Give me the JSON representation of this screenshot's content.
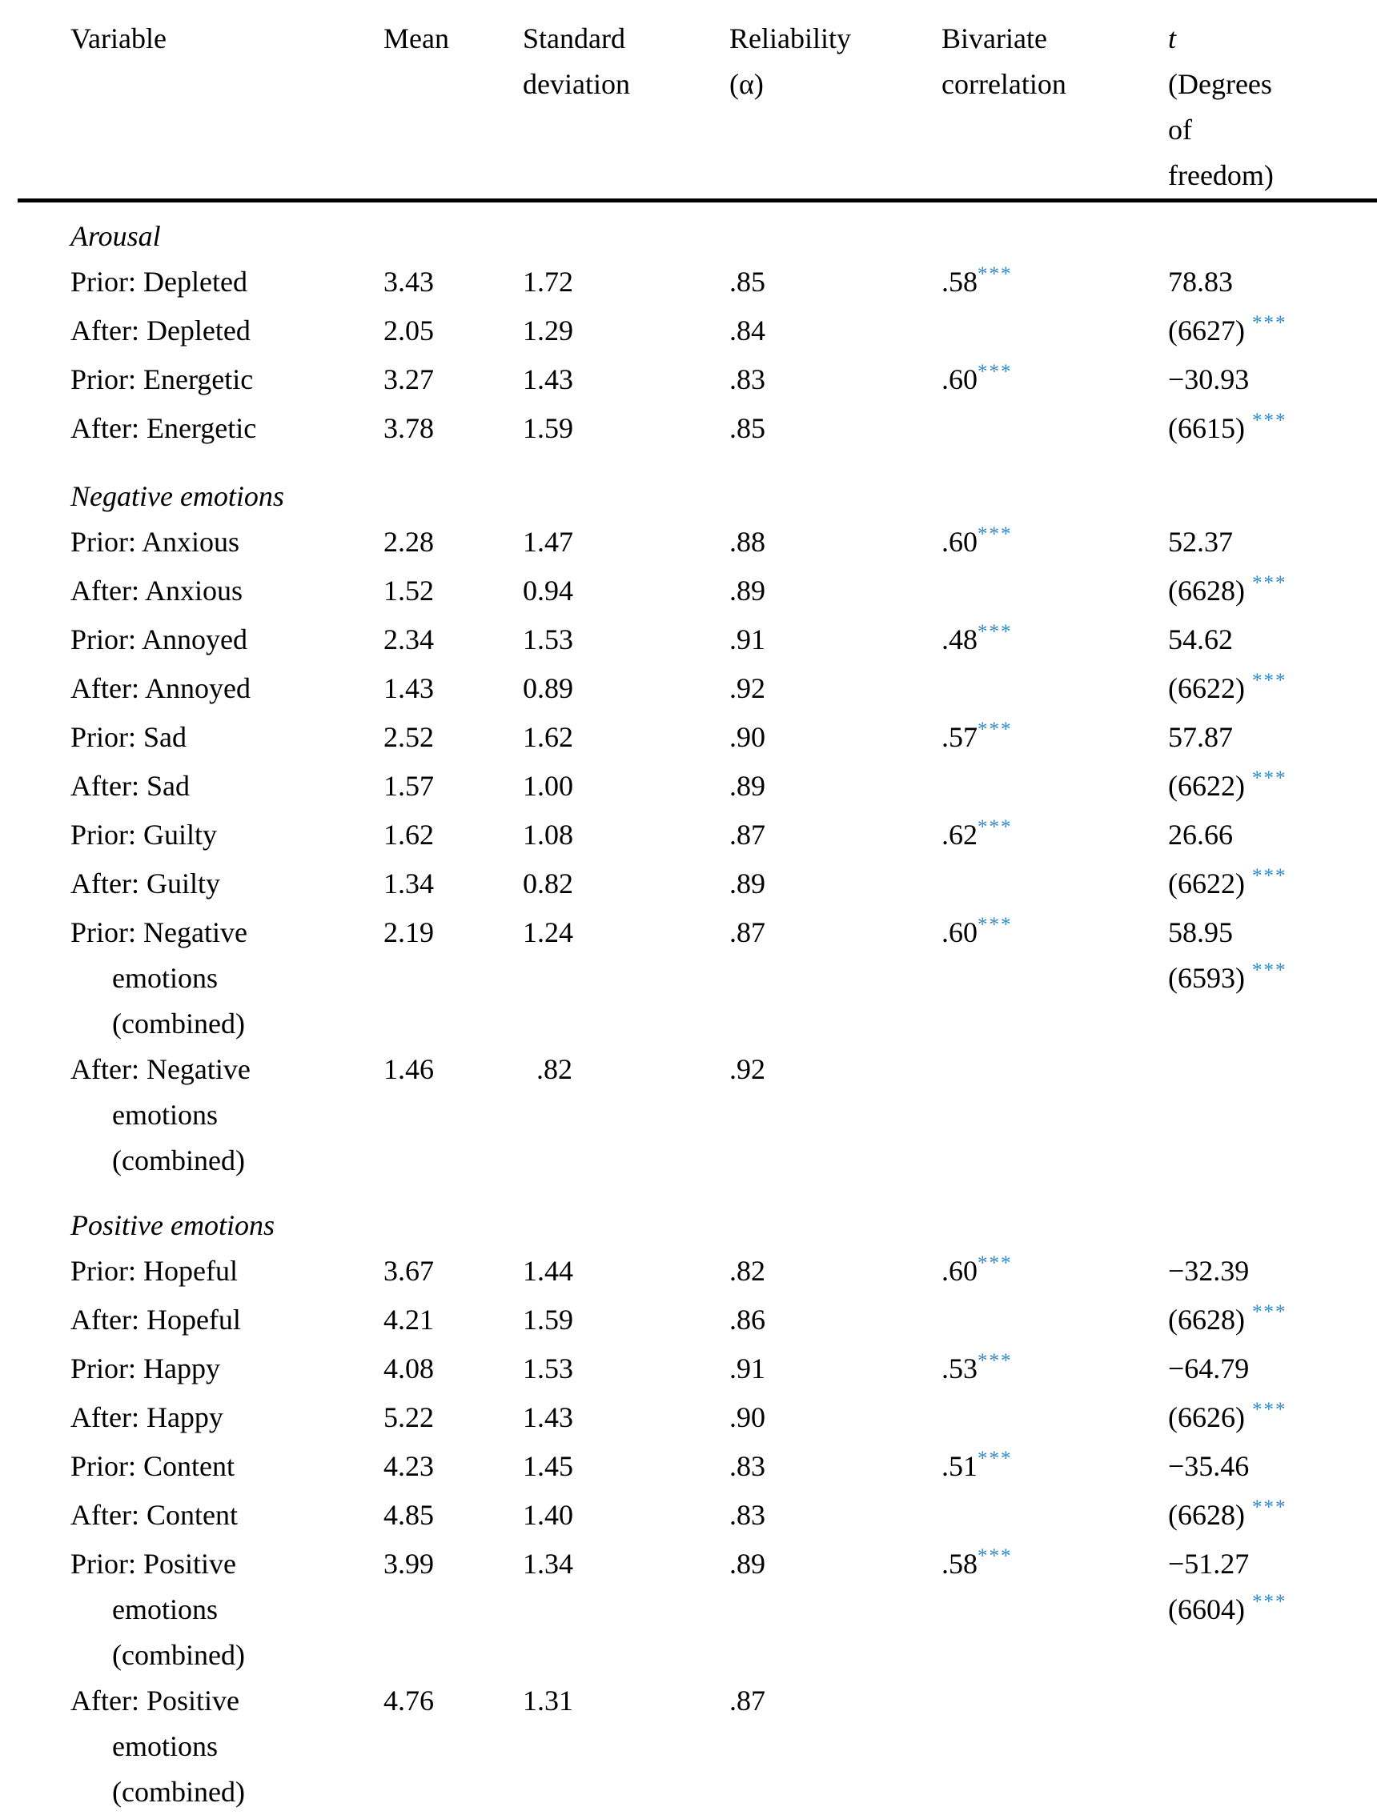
{
  "accent_color": "#2f88c6",
  "text_color": "#000000",
  "header": {
    "columns": [
      {
        "id": "variable",
        "lines": [
          "Variable"
        ]
      },
      {
        "id": "mean",
        "lines": [
          "Mean"
        ]
      },
      {
        "id": "sd",
        "lines": [
          "Standard",
          "deviation"
        ]
      },
      {
        "id": "reliability",
        "lines": [
          "Reliability",
          "(α)"
        ]
      },
      {
        "id": "correlation",
        "lines": [
          "Bivariate",
          "correlation"
        ]
      },
      {
        "id": "t",
        "lines": [
          "t",
          "(Degrees",
          "of",
          "freedom)"
        ],
        "italic_first_line": true
      }
    ]
  },
  "significance_marker": "***",
  "sections": [
    {
      "title": "Arousal",
      "rows": [
        {
          "label_lines": [
            "Prior: Depleted"
          ],
          "mean": "3.43",
          "sd": "1.72",
          "reliability": ".85",
          "correlation": ".58",
          "correlation_stars": "***",
          "t": "78.83",
          "df": "",
          "df_stars": ""
        },
        {
          "label_lines": [
            "After: Depleted"
          ],
          "mean": "2.05",
          "sd": "1.29",
          "reliability": ".84",
          "correlation": "",
          "correlation_stars": "",
          "t": "",
          "df": "(6627)",
          "df_stars": "***"
        },
        {
          "label_lines": [
            "Prior: Energetic"
          ],
          "mean": "3.27",
          "sd": "1.43",
          "reliability": ".83",
          "correlation": ".60",
          "correlation_stars": "***",
          "t": "−30.93",
          "df": "",
          "df_stars": ""
        },
        {
          "label_lines": [
            "After: Energetic"
          ],
          "mean": "3.78",
          "sd": "1.59",
          "reliability": ".85",
          "correlation": "",
          "correlation_stars": "",
          "t": "",
          "df": "(6615)",
          "df_stars": "***"
        }
      ]
    },
    {
      "title": "Negative emotions",
      "rows": [
        {
          "label_lines": [
            "Prior: Anxious"
          ],
          "mean": "2.28",
          "sd": "1.47",
          "reliability": ".88",
          "correlation": ".60",
          "correlation_stars": "***",
          "t": "52.37",
          "df": "",
          "df_stars": ""
        },
        {
          "label_lines": [
            "After: Anxious"
          ],
          "mean": "1.52",
          "sd": "0.94",
          "reliability": ".89",
          "correlation": "",
          "correlation_stars": "",
          "t": "",
          "df": "(6628)",
          "df_stars": "***"
        },
        {
          "label_lines": [
            "Prior: Annoyed"
          ],
          "mean": "2.34",
          "sd": "1.53",
          "reliability": ".91",
          "correlation": ".48",
          "correlation_stars": "***",
          "t": "54.62",
          "df": "",
          "df_stars": ""
        },
        {
          "label_lines": [
            "After: Annoyed"
          ],
          "mean": "1.43",
          "sd": "0.89",
          "reliability": ".92",
          "correlation": "",
          "correlation_stars": "",
          "t": "",
          "df": "(6622)",
          "df_stars": "***"
        },
        {
          "label_lines": [
            "Prior: Sad"
          ],
          "mean": "2.52",
          "sd": "1.62",
          "reliability": ".90",
          "correlation": ".57",
          "correlation_stars": "***",
          "t": "57.87",
          "df": "",
          "df_stars": ""
        },
        {
          "label_lines": [
            "After: Sad"
          ],
          "mean": "1.57",
          "sd": "1.00",
          "reliability": ".89",
          "correlation": "",
          "correlation_stars": "",
          "t": "",
          "df": "(6622)",
          "df_stars": "***"
        },
        {
          "label_lines": [
            "Prior: Guilty"
          ],
          "mean": "1.62",
          "sd": "1.08",
          "reliability": ".87",
          "correlation": ".62",
          "correlation_stars": "***",
          "t": "26.66",
          "df": "",
          "df_stars": ""
        },
        {
          "label_lines": [
            "After: Guilty"
          ],
          "mean": "1.34",
          "sd": "0.82",
          "reliability": ".89",
          "correlation": "",
          "correlation_stars": "",
          "t": "",
          "df": "(6622)",
          "df_stars": "***"
        },
        {
          "label_lines": [
            "Prior: Negative",
            "emotions",
            "(combined)"
          ],
          "mean": "2.19",
          "sd": "1.24",
          "reliability": ".87",
          "correlation": ".60",
          "correlation_stars": "***",
          "t": "58.95",
          "df": "(6593)",
          "df_stars": "***"
        },
        {
          "label_lines": [
            "After: Negative",
            "emotions",
            "(combined)"
          ],
          "mean": "1.46",
          "sd": ".82",
          "reliability": ".92",
          "correlation": "",
          "correlation_stars": "",
          "t": "",
          "df": "",
          "df_stars": ""
        }
      ]
    },
    {
      "title": "Positive emotions",
      "rows": [
        {
          "label_lines": [
            "Prior: Hopeful"
          ],
          "mean": "3.67",
          "sd": "1.44",
          "reliability": ".82",
          "correlation": ".60",
          "correlation_stars": "***",
          "t": "−32.39",
          "df": "",
          "df_stars": ""
        },
        {
          "label_lines": [
            "After: Hopeful"
          ],
          "mean": "4.21",
          "sd": "1.59",
          "reliability": ".86",
          "correlation": "",
          "correlation_stars": "",
          "t": "",
          "df": "(6628)",
          "df_stars": "***"
        },
        {
          "label_lines": [
            "Prior: Happy"
          ],
          "mean": "4.08",
          "sd": "1.53",
          "reliability": ".91",
          "correlation": ".53",
          "correlation_stars": "***",
          "t": "−64.79",
          "df": "",
          "df_stars": ""
        },
        {
          "label_lines": [
            "After: Happy"
          ],
          "mean": "5.22",
          "sd": "1.43",
          "reliability": ".90",
          "correlation": "",
          "correlation_stars": "",
          "t": "",
          "df": "(6626)",
          "df_stars": "***"
        },
        {
          "label_lines": [
            "Prior: Content"
          ],
          "mean": "4.23",
          "sd": "1.45",
          "reliability": ".83",
          "correlation": ".51",
          "correlation_stars": "***",
          "t": "−35.46",
          "df": "",
          "df_stars": ""
        },
        {
          "label_lines": [
            "After: Content"
          ],
          "mean": "4.85",
          "sd": "1.40",
          "reliability": ".83",
          "correlation": "",
          "correlation_stars": "",
          "t": "",
          "df": "(6628)",
          "df_stars": "***"
        },
        {
          "label_lines": [
            "Prior: Positive",
            "emotions",
            "(combined)"
          ],
          "mean": "3.99",
          "sd": "1.34",
          "reliability": ".89",
          "correlation": ".58",
          "correlation_stars": "***",
          "t": "−51.27",
          "df": "(6604)",
          "df_stars": "***"
        },
        {
          "label_lines": [
            "After: Positive",
            "emotions",
            "(combined)"
          ],
          "mean": "4.76",
          "sd": "1.31",
          "reliability": ".87",
          "correlation": "",
          "correlation_stars": "",
          "t": "",
          "df": "",
          "df_stars": ""
        }
      ]
    }
  ]
}
